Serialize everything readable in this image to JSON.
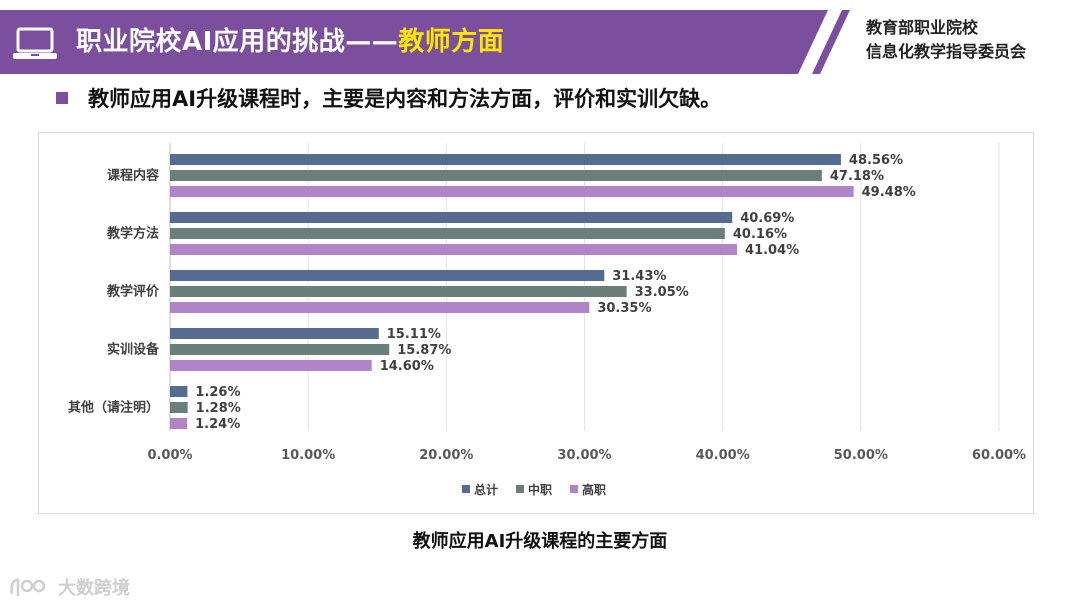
{
  "header": {
    "title_main": "职业院校AI应用的挑战——",
    "title_highlight": "教师方面",
    "org_line1": "教育部职业院校",
    "org_line2": "信息化教学指导委员会",
    "bar_color": "#7b4f9d"
  },
  "subtitle": "教师应用AI升级课程时，主要是内容和方法方面，评价和实训欠缺。",
  "caption": "教师应用AI升级课程的主要方面",
  "watermark": "大数跨境",
  "chart_data": {
    "type": "bar",
    "orientation": "horizontal",
    "title": "教师应用AI升级课程的主要方面",
    "categories": [
      "课程内容",
      "教学方法",
      "教学评价",
      "实训设备",
      "其他（请注明）"
    ],
    "series": [
      {
        "name": "总计",
        "color": "#556b8f",
        "values": [
          48.56,
          40.69,
          31.43,
          15.11,
          1.26
        ],
        "labels": [
          "48.56%",
          "40.69%",
          "31.43%",
          "15.11%",
          "1.26%"
        ]
      },
      {
        "name": "中职",
        "color": "#6a7f79",
        "values": [
          47.18,
          40.16,
          33.05,
          15.87,
          1.28
        ],
        "labels": [
          "47.18%",
          "40.16%",
          "33.05%",
          "15.87%",
          "1.28%"
        ]
      },
      {
        "name": "高职",
        "color": "#b084c6",
        "values": [
          49.48,
          41.04,
          30.35,
          14.6,
          1.24
        ],
        "labels": [
          "49.48%",
          "41.04%",
          "30.35%",
          "14.60%",
          "1.24%"
        ]
      }
    ],
    "xlim": [
      0,
      60
    ],
    "x_ticks": [
      0,
      10,
      20,
      30,
      40,
      50,
      60
    ],
    "x_tick_labels": [
      "0.00%",
      "10.00%",
      "20.00%",
      "30.00%",
      "40.00%",
      "50.00%",
      "60.00%"
    ],
    "grid": true,
    "legend_position": "bottom"
  }
}
